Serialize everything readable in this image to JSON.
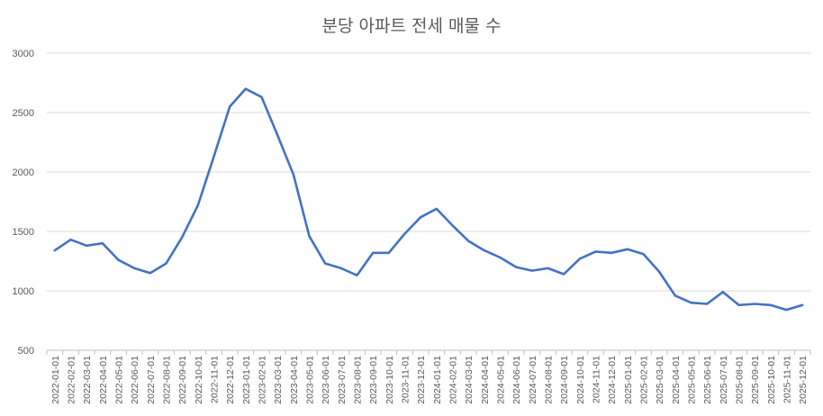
{
  "chart_data": {
    "type": "line",
    "title": "분당 아파트 전세 매물 수",
    "xlabel": "",
    "ylabel": "",
    "ylim": [
      500,
      3000
    ],
    "yticks": [
      500,
      1000,
      1500,
      2000,
      2500,
      3000
    ],
    "grid": true,
    "legend": "none",
    "color": "#4472C4",
    "categories": [
      "2022-01-01",
      "2022-02-01",
      "2022-03-01",
      "2022-04-01",
      "2022-05-01",
      "2022-06-01",
      "2022-07-01",
      "2022-08-01",
      "2022-09-01",
      "2022-10-01",
      "2022-11-01",
      "2022-12-01",
      "2023-01-01",
      "2023-02-01",
      "2023-03-01",
      "2023-04-01",
      "2023-05-01",
      "2023-06-01",
      "2023-07-01",
      "2023-08-01",
      "2023-09-01",
      "2023-10-01",
      "2023-11-01",
      "2023-12-01",
      "2024-01-01",
      "2024-02-01",
      "2024-03-01",
      "2024-04-01",
      "2024-05-01",
      "2024-06-01",
      "2024-07-01",
      "2024-08-01",
      "2024-09-01",
      "2024-10-01",
      "2024-11-01",
      "2024-12-01",
      "2025-01-01",
      "2025-02-01",
      "2025-03-01",
      "2025-04-01",
      "2025-05-01",
      "2025-06-01",
      "2025-07-01",
      "2025-08-01",
      "2025-09-01",
      "2025-10-01",
      "2025-11-01",
      "2025-12-01"
    ],
    "values": [
      1340,
      1430,
      1380,
      1400,
      1260,
      1190,
      1150,
      1230,
      1450,
      1720,
      2130,
      2550,
      2700,
      2630,
      2310,
      1980,
      1460,
      1230,
      1190,
      1130,
      1320,
      1320,
      1480,
      1620,
      1690,
      1550,
      1420,
      1340,
      1280,
      1200,
      1170,
      1190,
      1140,
      1270,
      1330,
      1320,
      1350,
      1310,
      1160,
      960,
      900,
      890,
      990,
      880,
      890,
      880,
      840,
      880
    ]
  }
}
